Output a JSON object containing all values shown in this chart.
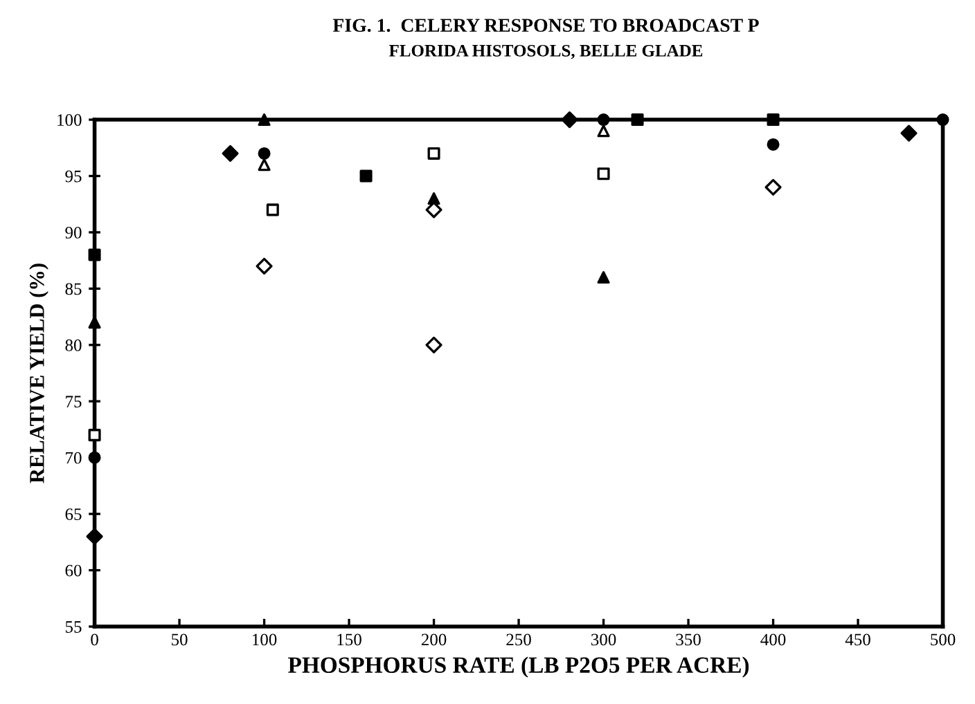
{
  "chart_data": {
    "type": "scatter",
    "title": "FIG. 1.  CELERY RESPONSE TO BROADCAST P",
    "subtitle": "FLORIDA HISTOSOLS, BELLE GLADE",
    "xlabel": "PHOSPHORUS RATE (LB P2O5 PER ACRE)",
    "ylabel": "RELATIVE YIELD (%)",
    "series": [
      {
        "color": "#000000",
        "marker": "circle",
        "x": [
          0,
          100,
          300,
          400,
          500
        ],
        "values": [
          70,
          97,
          100,
          97.8,
          100
        ]
      },
      {
        "color": "#000000",
        "marker": "diamond",
        "x": [
          0,
          80,
          280,
          480
        ],
        "values": [
          63,
          97,
          100,
          98.8
        ]
      },
      {
        "color": "#ffffff",
        "marker": "triangle",
        "x": [
          100,
          300
        ],
        "values": [
          96,
          99
        ]
      },
      {
        "color": "#000000",
        "marker": "triangle",
        "x": [
          0,
          100,
          200,
          300
        ],
        "values": [
          82,
          100,
          93,
          86
        ]
      },
      {
        "color": "#ffffff",
        "marker": "square",
        "x": [
          0,
          105,
          200,
          300
        ],
        "values": [
          72,
          92,
          97,
          95.2
        ]
      },
      {
        "color": "#000000",
        "marker": "square",
        "x": [
          0,
          160,
          320,
          400
        ],
        "values": [
          88,
          95,
          100,
          100
        ]
      },
      {
        "color": "#ffffff",
        "marker": "diamond",
        "x": [
          100,
          200,
          200,
          400
        ],
        "values": [
          87,
          92,
          80,
          94
        ]
      }
    ],
    "xlim": [
      0,
      500
    ],
    "ylim": [
      55,
      100
    ],
    "xticks": [
      0,
      50,
      100,
      150,
      200,
      250,
      300,
      350,
      400,
      450,
      500
    ],
    "yticks": [
      55,
      60,
      65,
      70,
      75,
      80,
      85,
      90,
      95,
      100
    ],
    "grid": false,
    "legend": false
  }
}
